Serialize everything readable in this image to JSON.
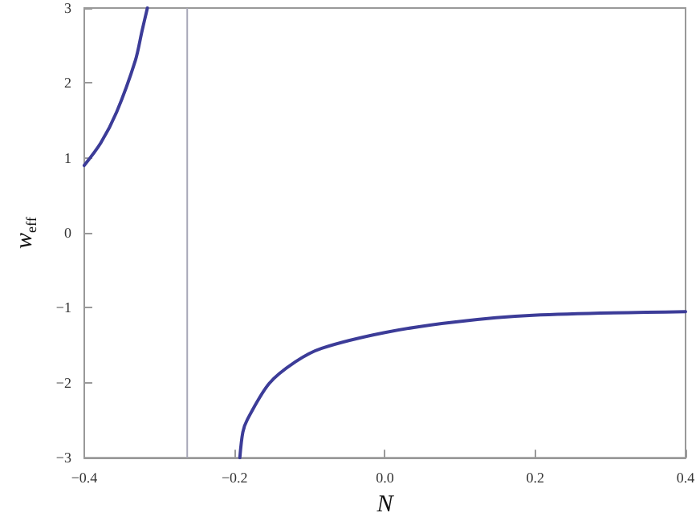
{
  "chart_data": {
    "type": "line",
    "xlabel": "N",
    "ylabel": "w$_{eff}$",
    "x": [
      -0.4,
      -0.378,
      -0.357,
      -0.332,
      -0.323,
      -0.316,
      -0.263,
      -0.193,
      -0.189,
      -0.183,
      -0.154,
      -0.119,
      -0.084,
      0.0,
      0.092,
      0.197,
      0.4
    ],
    "series": [
      {
        "color": "#3c3c98",
        "values": [
          0.9,
          1.2,
          1.61,
          2.3,
          2.7,
          3,
          null,
          -3,
          -2.66,
          -2.49,
          -2.01,
          -1.72,
          -1.54,
          -1.33,
          -1.19,
          -1.1,
          -1.05
        ]
      }
    ],
    "xlim": [
      -0.4,
      0.4
    ],
    "ylim": [
      -3,
      3
    ],
    "xticks": [
      {
        "value": -0.4,
        "label": "−0.4"
      },
      {
        "value": -0.2,
        "label": "−0.2"
      },
      {
        "value": 0,
        "label": "0.0"
      },
      {
        "value": 0.2,
        "label": "0.2"
      },
      {
        "value": 0.4,
        "label": "0.4"
      }
    ],
    "yticks": [
      {
        "value": -3,
        "label": "−3"
      },
      {
        "value": -2,
        "label": "−2"
      },
      {
        "value": -1,
        "label": "−1"
      },
      0,
      1,
      2,
      3
    ],
    "ref_lines": [
      {
        "axis": "x",
        "value": -0.263,
        "color": "#a8a8b8"
      }
    ],
    "marker": "none",
    "line_style": "solid"
  }
}
